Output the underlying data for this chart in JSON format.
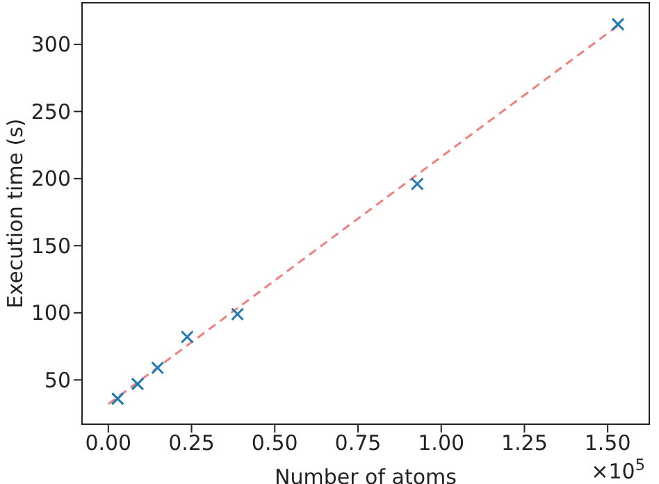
{
  "chart_data": {
    "type": "scatter",
    "xlabel": "Number of atoms",
    "ylabel": "Execution time (s)",
    "annotations": [
      "×10$^{5}$"
    ],
    "xlim": [
      -0.079,
      1.625
    ],
    "ylim": [
      17,
      331
    ],
    "xticks": [
      {
        "value": 0,
        "label": "0.00"
      },
      {
        "value": 0.25,
        "label": "0.25"
      },
      {
        "value": 0.5,
        "label": "0.50"
      },
      {
        "value": 0.75,
        "label": "0.75"
      },
      {
        "value": 1,
        "label": "1.00"
      },
      {
        "value": 1.25,
        "label": "1.25"
      },
      {
        "value": 1.5,
        "label": "1.50"
      }
    ],
    "yticks": [
      50,
      100,
      150,
      200,
      250,
      300
    ],
    "series": [
      {
        "color": "#1f77b4",
        "marker": "cross",
        "x": [
          0.028,
          0.088,
          0.148,
          0.237,
          0.388,
          0.928,
          1.531
        ],
        "values": [
          36,
          47,
          59,
          82,
          99,
          196,
          315
        ]
      },
      {
        "type": "line",
        "color": "#f08080",
        "line_style": "dashed",
        "marker": "none",
        "x": [
          0,
          1.531
        ],
        "values": [
          32,
          314
        ]
      }
    ]
  }
}
